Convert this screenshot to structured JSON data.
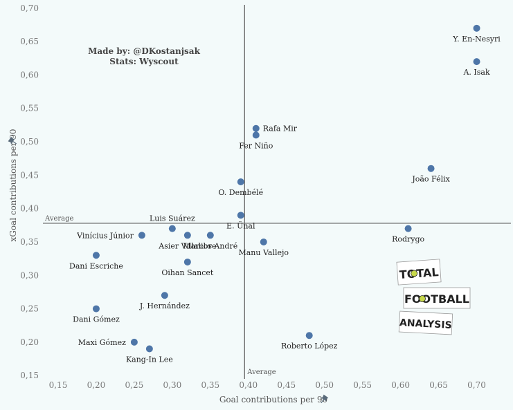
{
  "chart_data": {
    "type": "scatter",
    "title": "",
    "xlabel": "Goal contributions per 90",
    "ylabel": "xGoal contributions per 90",
    "xlim": [
      0.13,
      0.745
    ],
    "ylim": [
      0.145,
      0.705
    ],
    "x_ticks": [
      "0,15",
      "0,20",
      "0,25",
      "0,30",
      "0,35",
      "0,40",
      "0,45",
      "0,50",
      "0,55",
      "0,60",
      "0,65",
      "0,70"
    ],
    "x_tick_values": [
      0.15,
      0.2,
      0.25,
      0.3,
      0.35,
      0.4,
      0.45,
      0.5,
      0.55,
      0.6,
      0.65,
      0.7
    ],
    "y_ticks": [
      "0,15",
      "0,20",
      "0,25",
      "0,30",
      "0,35",
      "0,40",
      "0,45",
      "0,50",
      "0,55",
      "0,60",
      "0,65",
      "0,70"
    ],
    "y_tick_values": [
      0.15,
      0.2,
      0.25,
      0.3,
      0.35,
      0.4,
      0.45,
      0.5,
      0.55,
      0.6,
      0.65,
      0.7
    ],
    "x_average": 0.395,
    "y_average": 0.378,
    "average_label": "Average",
    "point_color": "#4e76a8",
    "points": [
      {
        "name": "Y. En-Nesyri",
        "x": 0.7,
        "y": 0.67,
        "label_pos": "below"
      },
      {
        "name": "A. Isak",
        "x": 0.7,
        "y": 0.62,
        "label_pos": "below"
      },
      {
        "name": "Rafa Mir",
        "x": 0.41,
        "y": 0.52,
        "label_pos": "right"
      },
      {
        "name": "Fer Niño",
        "x": 0.41,
        "y": 0.51,
        "label_pos": "below"
      },
      {
        "name": "João Félix",
        "x": 0.64,
        "y": 0.46,
        "label_pos": "below"
      },
      {
        "name": "O. Dembélé",
        "x": 0.39,
        "y": 0.44,
        "label_pos": "below"
      },
      {
        "name": "E. Ünal",
        "x": 0.39,
        "y": 0.39,
        "label_pos": "below"
      },
      {
        "name": "Luis Suárez",
        "x": 0.3,
        "y": 0.37,
        "label_pos": "above"
      },
      {
        "name": "Vinícius Júnior",
        "x": 0.26,
        "y": 0.36,
        "label_pos": "left"
      },
      {
        "name": "Asier Villalibre",
        "x": 0.32,
        "y": 0.36,
        "label_pos": "below"
      },
      {
        "name": "Marcos André",
        "x": 0.35,
        "y": 0.36,
        "label_pos": "below"
      },
      {
        "name": "Rodrygo",
        "x": 0.61,
        "y": 0.37,
        "label_pos": "below"
      },
      {
        "name": "Manu Vallejo",
        "x": 0.42,
        "y": 0.35,
        "label_pos": "below"
      },
      {
        "name": "Dani Escriche",
        "x": 0.2,
        "y": 0.33,
        "label_pos": "below"
      },
      {
        "name": "Oihan Sancet",
        "x": 0.32,
        "y": 0.32,
        "label_pos": "below"
      },
      {
        "name": "J. Hernández",
        "x": 0.29,
        "y": 0.27,
        "label_pos": "below"
      },
      {
        "name": "Dani Gómez",
        "x": 0.2,
        "y": 0.25,
        "label_pos": "below"
      },
      {
        "name": "Roberto López",
        "x": 0.48,
        "y": 0.21,
        "label_pos": "below"
      },
      {
        "name": "Maxi Gómez",
        "x": 0.25,
        "y": 0.2,
        "label_pos": "left"
      },
      {
        "name": "Kang-In Lee",
        "x": 0.27,
        "y": 0.19,
        "label_pos": "below"
      }
    ],
    "annotations": [
      "Made by: @DKostanjsak",
      "Stats: Wyscout"
    ]
  },
  "logo": {
    "line1": "TOTAL",
    "line2": "FOOTBALL",
    "line3": "ANALYSIS"
  }
}
